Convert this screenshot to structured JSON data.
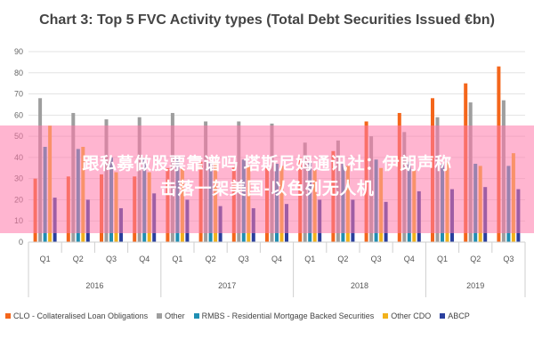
{
  "chart_data": {
    "type": "bar",
    "title": "Chart 3: Top 5 FVC Activity types (Total Debt Securities Issued €bn)",
    "ylim": [
      0,
      90
    ],
    "yticks": [
      0,
      10,
      20,
      30,
      40,
      50,
      60,
      70,
      80,
      90
    ],
    "grid": true,
    "legend_position": "bottom",
    "categories": [
      "Q1",
      "Q2",
      "Q3",
      "Q4",
      "Q1",
      "Q2",
      "Q3",
      "Q4",
      "Q1",
      "Q2",
      "Q3",
      "Q4",
      "Q1",
      "Q2",
      "Q3"
    ],
    "year_groups": [
      {
        "label": "2016",
        "count": 4
      },
      {
        "label": "2017",
        "count": 4
      },
      {
        "label": "2018",
        "count": 4
      },
      {
        "label": "2019",
        "count": 3
      }
    ],
    "series": [
      {
        "name": "CLO - Collateralised Loan Obligations",
        "color": "#f4661b",
        "values": [
          30,
          31,
          32,
          31,
          35,
          38,
          36,
          35,
          40,
          43,
          57,
          61,
          68,
          75,
          83
        ]
      },
      {
        "name": "Other",
        "color": "#9e9e9e",
        "values": [
          68,
          61,
          58,
          59,
          61,
          57,
          57,
          56,
          47,
          48,
          50,
          52,
          59,
          66,
          67
        ]
      },
      {
        "name": "RMBS - Residential Mortgage Backed Securities",
        "color": "#1f8fb3",
        "values": [
          45,
          44,
          40,
          39,
          40,
          38,
          39,
          37,
          38,
          37,
          39,
          38,
          37,
          37,
          36
        ]
      },
      {
        "name": "Other CDO",
        "color": "#f2b21b",
        "values": [
          55,
          45,
          33,
          33,
          35,
          38,
          36,
          36,
          34,
          36,
          35,
          34,
          38,
          36,
          42
        ]
      },
      {
        "name": "ABCP",
        "color": "#2a3f9e",
        "values": [
          21,
          20,
          16,
          23,
          20,
          17,
          16,
          18,
          20,
          20,
          19,
          24,
          25,
          26,
          25
        ]
      }
    ]
  },
  "overlay": {
    "line1": "跟私募做股票靠谱吗 塔斯尼姆通讯社：伊朗声称",
    "line2": "击落一架美国-以色列无人机"
  }
}
